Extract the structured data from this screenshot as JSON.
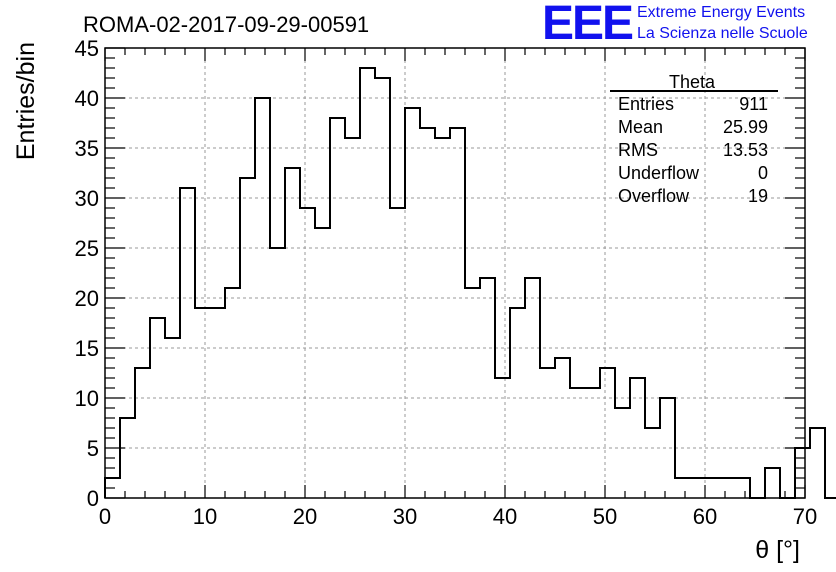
{
  "logo": {
    "mark": "EEE",
    "line1": "Extreme Energy Events",
    "line2": "La Scienza nelle Scuole",
    "color": "#1111ee"
  },
  "stats": {
    "title": "Theta",
    "rows": [
      {
        "label": "Entries",
        "value": "911"
      },
      {
        "label": "Mean",
        "value": "25.99"
      },
      {
        "label": "RMS",
        "value": "13.53"
      },
      {
        "label": "Underflow",
        "value": "0"
      },
      {
        "label": "Overflow",
        "value": "19"
      }
    ]
  },
  "chart_data": {
    "type": "bar",
    "histogram": true,
    "title": "ROMA-02-2017-09-29-00591",
    "xlabel": "θ [°]",
    "ylabel": "Entries/bin",
    "xlim": [
      0,
      70
    ],
    "ylim": [
      0,
      45
    ],
    "xticks": [
      0,
      10,
      20,
      30,
      40,
      50,
      60,
      70
    ],
    "yticks": [
      0,
      5,
      10,
      15,
      20,
      25,
      30,
      35,
      40,
      45
    ],
    "grid": true,
    "bin_width": 1.5,
    "bin_start": 0,
    "values": [
      2,
      8,
      13,
      18,
      16,
      31,
      19,
      19,
      21,
      32,
      40,
      25,
      33,
      29,
      27,
      38,
      36,
      43,
      42,
      29,
      39,
      37,
      36,
      37,
      21,
      22,
      12,
      19,
      22,
      13,
      14,
      11,
      11,
      13,
      9,
      12,
      7,
      10,
      2,
      2,
      2,
      2,
      2,
      0,
      3,
      0,
      5,
      7,
      0
    ],
    "line_color": "#000000"
  }
}
